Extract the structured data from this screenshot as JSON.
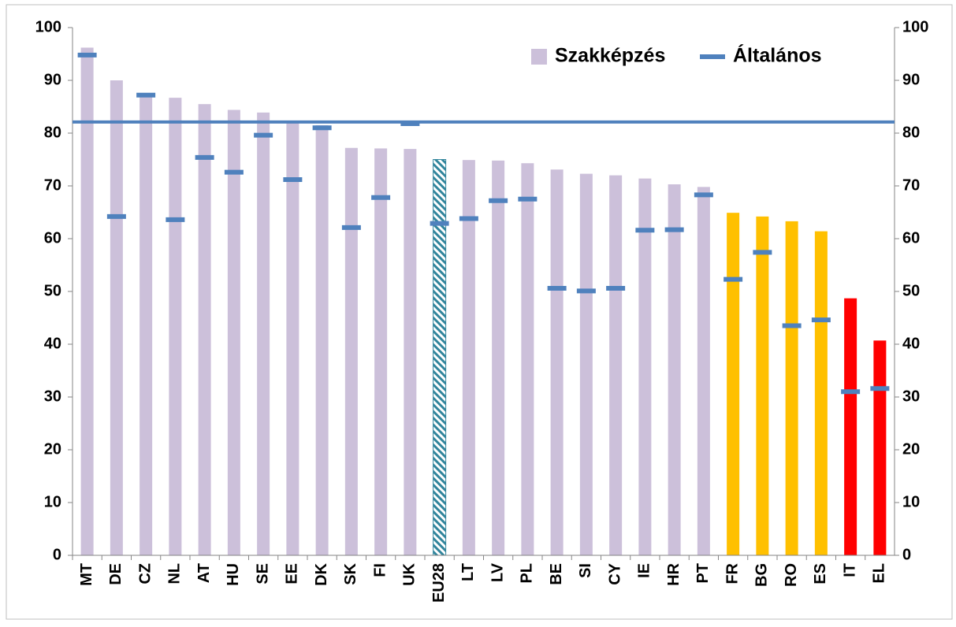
{
  "chart_data": {
    "type": "bar",
    "categories": [
      "MT",
      "DE",
      "CZ",
      "NL",
      "AT",
      "HU",
      "SE",
      "EE",
      "DK",
      "SK",
      "FI",
      "UK",
      "EU28",
      "LT",
      "LV",
      "PL",
      "BE",
      "SI",
      "CY",
      "IE",
      "HR",
      "PT",
      "FR",
      "BG",
      "RO",
      "ES",
      "IT",
      "EL"
    ],
    "series": [
      {
        "name": "Szakképzés",
        "color": "#ccc0da",
        "kind": "bar",
        "values": [
          96.2,
          90,
          87.5,
          86.7,
          85.5,
          84.4,
          83.9,
          82.3,
          81.5,
          77.2,
          77.1,
          77.0,
          75.0,
          74.9,
          74.8,
          74.3,
          73.1,
          72.3,
          72.0,
          71.4,
          70.3,
          69.8,
          64.9,
          64.2,
          63.3,
          61.4,
          48.7,
          40.7
        ],
        "colors": [
          "#ccc0da",
          "#ccc0da",
          "#ccc0da",
          "#ccc0da",
          "#ccc0da",
          "#ccc0da",
          "#ccc0da",
          "#ccc0da",
          "#ccc0da",
          "#ccc0da",
          "#ccc0da",
          "#ccc0da",
          "#31859c",
          "#ccc0da",
          "#ccc0da",
          "#ccc0da",
          "#ccc0da",
          "#ccc0da",
          "#ccc0da",
          "#ccc0da",
          "#ccc0da",
          "#ccc0da",
          "#ffc000",
          "#ffc000",
          "#ffc000",
          "#ffc000",
          "#ff0000",
          "#ff0000"
        ],
        "patterns": [
          "solid",
          "solid",
          "solid",
          "solid",
          "solid",
          "solid",
          "solid",
          "solid",
          "solid",
          "solid",
          "solid",
          "solid",
          "hatch",
          "solid",
          "solid",
          "solid",
          "solid",
          "solid",
          "solid",
          "solid",
          "solid",
          "solid",
          "solid",
          "solid",
          "solid",
          "solid",
          "solid",
          "solid"
        ]
      },
      {
        "name": "Általános",
        "color": "#4f81bd",
        "kind": "dash",
        "values": [
          94.8,
          64.2,
          87.2,
          63.6,
          75.4,
          72.6,
          79.6,
          71.2,
          81.0,
          62.1,
          67.8,
          81.8,
          62.9,
          63.8,
          67.2,
          67.5,
          50.6,
          50.1,
          50.6,
          61.6,
          61.7,
          68.3,
          52.3,
          57.4,
          43.5,
          44.6,
          31.0,
          31.6
        ]
      }
    ],
    "reference_line": 82.1,
    "reference_color": "#4f81bd",
    "ylim": [
      0,
      100
    ],
    "yticks": [
      0,
      10,
      20,
      30,
      40,
      50,
      60,
      70,
      80,
      90,
      100
    ],
    "y2lim": [
      0,
      100
    ],
    "y2ticks": [
      0,
      10,
      20,
      30,
      40,
      50,
      60,
      70,
      80,
      90,
      100
    ],
    "legend": "top-right"
  }
}
